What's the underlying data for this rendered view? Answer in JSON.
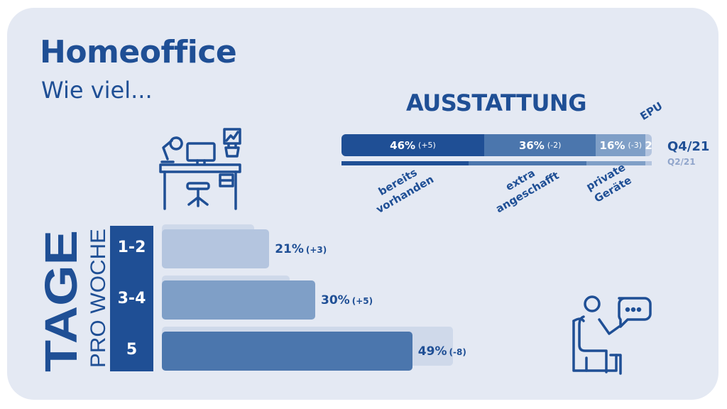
{
  "header": {
    "title": "Homeoffice",
    "subtitle": "Wie viel..."
  },
  "equipment": {
    "heading": "AUSSTATTUNG",
    "current_label": "Q4/21",
    "previous_label": "Q2/21",
    "epu_label": "EPU",
    "segments": [
      {
        "label": "bereits vorhanden",
        "label_lines": [
          "bereits",
          "vorhanden"
        ],
        "value_text": "46%",
        "change": "(+5)",
        "color": "#1f4f95"
      },
      {
        "label": "extra angeschafft",
        "label_lines": [
          "extra",
          "angeschafft"
        ],
        "value_text": "36%",
        "change": "(-2)",
        "color": "#4b76ad"
      },
      {
        "label": "private Geräte",
        "label_lines": [
          "private",
          "Geräte"
        ],
        "value_text": "16%",
        "change": "(-3)",
        "color": "#7f9fc7"
      },
      {
        "label": "EPU",
        "value_text": "2",
        "change": "",
        "color": "#b4c5df"
      }
    ]
  },
  "days": {
    "label_main": "TAGE",
    "label_sub": "PRO WOCHE",
    "rows": [
      {
        "category": "1-2",
        "value_text": "21%",
        "change": "(+3)"
      },
      {
        "category": "3-4",
        "value_text": "30%",
        "change": "(+5)"
      },
      {
        "category": "5",
        "value_text": "49%",
        "change": "(-8)"
      }
    ]
  },
  "chart_data": [
    {
      "type": "bar",
      "orientation": "horizontal-stacked",
      "title": "AUSSTATTUNG",
      "categories": [
        "bereits vorhanden",
        "extra angeschafft",
        "private Geräte",
        "EPU"
      ],
      "series": [
        {
          "name": "Q4/21",
          "values": [
            46,
            36,
            16,
            2
          ]
        },
        {
          "name": "Q2/21",
          "values": [
            41,
            38,
            19,
            2
          ]
        }
      ],
      "unit": "%"
    },
    {
      "type": "bar",
      "orientation": "horizontal",
      "categories": [
        "1-2",
        "3-4",
        "5"
      ],
      "series": [
        {
          "name": "Q4/21",
          "values": [
            21,
            30,
            49
          ]
        },
        {
          "name": "Q2/21",
          "values": [
            18,
            25,
            57
          ]
        }
      ],
      "colors": [
        "#b4c5df",
        "#7f9fc7",
        "#4b76ad"
      ],
      "previous_color": "#cfd9ea",
      "unit": "%"
    }
  ]
}
